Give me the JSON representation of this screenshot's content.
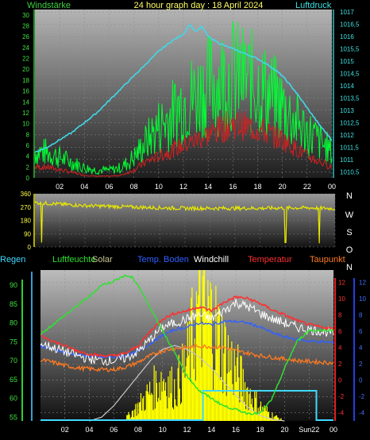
{
  "chart_data": [
    {
      "type": "line",
      "title": "24 hour graph day : 18 April 2024",
      "left_axis_label": "Windstärke",
      "right_axis_label": "Luftdruck",
      "x_ticks": [
        "02",
        "04",
        "06",
        "08",
        "10",
        "12",
        "14",
        "16",
        "18",
        "20",
        "22",
        "00"
      ],
      "left_ticks": [
        "0",
        "2",
        "4",
        "6",
        "8",
        "10",
        "12",
        "14",
        "16",
        "18",
        "20",
        "22",
        "24",
        "26",
        "28",
        "30"
      ],
      "right_ticks": [
        "1010,5",
        "1011",
        "1011,5",
        "1012",
        "1012,5",
        "1013",
        "1013,5",
        "1014",
        "1014,5",
        "1015",
        "1015,5",
        "1016",
        "1016,5",
        "1017"
      ],
      "xlim": [
        0,
        24
      ],
      "ylim_left": [
        0,
        31
      ],
      "ylim_right": [
        1010.25,
        1017.1
      ],
      "series": [
        {
          "key": "pressure",
          "color": "#40d8e8",
          "axis": "right",
          "x": [
            0,
            1,
            2,
            3,
            4,
            5,
            6,
            7,
            8,
            9,
            10,
            11,
            12,
            12.5,
            13,
            13.5,
            14,
            15,
            16,
            17,
            18,
            19,
            20,
            21,
            22,
            23,
            24
          ],
          "y": [
            1011.3,
            1011.5,
            1011.8,
            1012.1,
            1012.5,
            1012.9,
            1013.4,
            1013.9,
            1014.4,
            1014.9,
            1015.4,
            1015.8,
            1016.1,
            1016.5,
            1016.2,
            1016.4,
            1016.0,
            1015.7,
            1015.5,
            1015.3,
            1015.1,
            1014.8,
            1014.4,
            1013.8,
            1013.1,
            1012.4,
            1011.8
          ]
        },
        {
          "key": "wind_gust",
          "color": "#00ff33",
          "axis": "left",
          "x": [
            0,
            1,
            2,
            3,
            4,
            5,
            6,
            7,
            8,
            9,
            10,
            11,
            12,
            13,
            14,
            15,
            16,
            17,
            18,
            19,
            20,
            21,
            22,
            23,
            24
          ],
          "y": [
            5,
            5,
            4,
            3,
            2,
            1.5,
            1.5,
            2,
            4,
            7,
            10,
            12,
            15,
            16,
            18,
            19,
            20,
            19,
            18,
            16,
            14,
            11,
            9,
            7,
            5
          ]
        },
        {
          "key": "wind_avg",
          "color": "#d02020",
          "axis": "left",
          "x": [
            0,
            1,
            2,
            3,
            4,
            5,
            6,
            7,
            8,
            9,
            10,
            11,
            12,
            13,
            14,
            15,
            16,
            17,
            18,
            19,
            20,
            21,
            22,
            23,
            24
          ],
          "y": [
            2,
            2,
            1.5,
            1,
            0.5,
            0.3,
            0.3,
            0.5,
            1.5,
            3,
            4,
            5,
            6,
            7,
            8,
            9,
            10,
            9.5,
            9,
            8,
            7,
            5.5,
            4,
            3,
            2
          ]
        }
      ]
    },
    {
      "type": "scatter",
      "title": "",
      "y_ticks": [
        "360",
        "270",
        "180",
        "90",
        "0"
      ],
      "compass": [
        "N",
        "W",
        "S",
        "O",
        "N"
      ],
      "xlim": [
        0,
        24
      ],
      "ylim": [
        0,
        360
      ],
      "series": [
        {
          "key": "wind_direction",
          "color": "#e8e800",
          "x": [
            0,
            2,
            4,
            6,
            8,
            10,
            12,
            14,
            16,
            18,
            20,
            22,
            24
          ],
          "y": [
            300,
            290,
            280,
            275,
            270,
            265,
            262,
            262,
            262,
            262,
            265,
            265,
            260
          ]
        }
      ]
    },
    {
      "type": "line",
      "title": "",
      "legend": [
        {
          "label": "Regen",
          "color": "#40d8ff"
        },
        {
          "label": "Luftfeuchte",
          "color": "#30e030"
        },
        {
          "label": "Solar",
          "color": "#c8c890"
        },
        {
          "label": "Temp. Boden",
          "color": "#3060ff"
        },
        {
          "label": "Windchill",
          "color": "#ffffff"
        },
        {
          "label": "Temperatur",
          "color": "#ff3030"
        },
        {
          "label": "Taupunkt",
          "color": "#ff7a20"
        }
      ],
      "x_ticks": [
        "02",
        "04",
        "06",
        "08",
        "10",
        "12",
        "14",
        "16",
        "18",
        "20",
        "Sun22",
        "00"
      ],
      "left_ticks": [
        "55",
        "60",
        "65",
        "70",
        "75",
        "80",
        "85",
        "90"
      ],
      "right_ticks_red": [
        "-4",
        "-2",
        "0",
        "2",
        "4",
        "6",
        "8",
        "10",
        "12"
      ],
      "right_ticks_blue": [
        "-4",
        "-2",
        "0",
        "2",
        "4",
        "6",
        "8",
        "10",
        "12"
      ],
      "ylim_humidity": [
        54,
        94
      ],
      "ylim_temp": [
        -5,
        13.5
      ],
      "xlim": [
        0,
        24
      ],
      "series": [
        {
          "key": "humidity",
          "color": "#30e030",
          "x": [
            0,
            2,
            4,
            5,
            6,
            6.5,
            7,
            7.5,
            8,
            9,
            10,
            11,
            12,
            13,
            14,
            15,
            16,
            17,
            18,
            19,
            20,
            21,
            22,
            23,
            24
          ],
          "y": [
            77,
            82,
            87,
            90,
            91,
            92,
            92.5,
            92,
            90,
            84,
            78,
            72,
            66,
            62,
            60,
            58,
            57,
            56,
            56,
            60,
            68,
            75,
            78,
            78,
            78
          ]
        },
        {
          "key": "temperature",
          "color": "#ff3030",
          "x": [
            0,
            1,
            2,
            3,
            4,
            5,
            6,
            7,
            8,
            9,
            10,
            11,
            12,
            13,
            14,
            15,
            16,
            17,
            18,
            19,
            20,
            21,
            22,
            23,
            24
          ],
          "y": [
            5.5,
            4.8,
            4.2,
            3.6,
            3.2,
            3,
            3,
            3.3,
            4.2,
            6,
            7.5,
            8.2,
            8.5,
            9,
            8.5,
            9.5,
            10.2,
            10,
            9.4,
            8.6,
            8,
            7.3,
            6.8,
            6.5,
            6.3
          ]
        },
        {
          "key": "windchill",
          "color": "#ffffff",
          "x": [
            0,
            1,
            2,
            3,
            4,
            5,
            6,
            7,
            8,
            9,
            10,
            11,
            12,
            13,
            14,
            15,
            16,
            17,
            18,
            19,
            20,
            21,
            22,
            23,
            24
          ],
          "y": [
            4.5,
            4,
            3.5,
            3,
            2.6,
            2.4,
            2.4,
            2.7,
            3.5,
            5,
            6.5,
            7,
            7.5,
            8,
            7.5,
            8.5,
            9.5,
            9,
            8.2,
            7.5,
            7,
            6.5,
            6.2,
            6,
            5.8
          ]
        },
        {
          "key": "soil_temp",
          "color": "#3060ff",
          "x": [
            0,
            1,
            2,
            3,
            4,
            5,
            6,
            7,
            8,
            9,
            10,
            11,
            12,
            13,
            14,
            15,
            16,
            17,
            18,
            19,
            20,
            21,
            22,
            23,
            24
          ],
          "y": [
            4.2,
            3.8,
            3.4,
            3.1,
            2.9,
            2.8,
            2.8,
            3,
            3.5,
            4.5,
            5.5,
            6.2,
            6.5,
            7,
            6.8,
            7.2,
            7.2,
            7,
            6.5,
            5.8,
            5.3,
            5,
            4.8,
            4.7,
            4.6
          ]
        },
        {
          "key": "dewpoint",
          "color": "#ff7a20",
          "x": [
            0,
            1,
            2,
            3,
            4,
            5,
            6,
            7,
            8,
            9,
            10,
            11,
            12,
            13,
            14,
            15,
            16,
            17,
            18,
            19,
            20,
            21,
            22,
            23,
            24
          ],
          "y": [
            2.5,
            2.2,
            1.8,
            1.5,
            1.4,
            1.3,
            1.3,
            1.6,
            2.2,
            3,
            3.6,
            3.9,
            4,
            4.2,
            4.1,
            4,
            3.6,
            3.3,
            3,
            2.8,
            2.6,
            2.4,
            2.3,
            2.2,
            2.1
          ]
        },
        {
          "key": "solar_theoretical",
          "color": "#c8c8c8",
          "x": [
            4,
            5,
            6,
            7,
            8,
            9,
            10,
            11,
            12,
            13,
            14,
            15,
            16,
            17,
            18,
            19,
            20
          ],
          "y": [
            0,
            0.05,
            0.2,
            0.4,
            0.6,
            0.8,
            0.95,
            1,
            0.95,
            0.85,
            0.7,
            0.52,
            0.34,
            0.18,
            0.07,
            0.02,
            0
          ]
        },
        {
          "key": "solar",
          "color": "#ffff00",
          "x": [
            7,
            8,
            9,
            10,
            11,
            12,
            13,
            14,
            15,
            16,
            17,
            18,
            19,
            20
          ],
          "y": [
            0.02,
            0.1,
            0.2,
            0.3,
            0.22,
            0.4,
            0.8,
            0.7,
            0.5,
            0.35,
            0.2,
            0.1,
            0.04,
            0
          ]
        },
        {
          "key": "rain",
          "color": "#40d8ff",
          "x": [
            0,
            13.3,
            13.3,
            22.6,
            22.6,
            24
          ],
          "y": [
            0,
            0,
            1,
            1,
            0,
            0
          ]
        }
      ]
    }
  ]
}
